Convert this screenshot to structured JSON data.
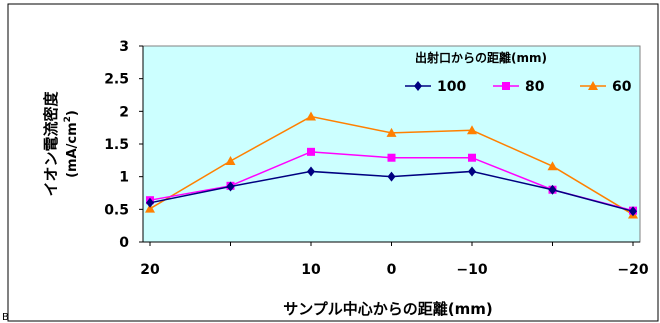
{
  "figure_label": "B",
  "chart_data": {
    "type": "line",
    "x": [
      20,
      15,
      10,
      0,
      -10,
      -15,
      -20
    ],
    "x_tick_labels": [
      "20",
      "",
      "10",
      "0",
      "−10",
      "",
      "−20"
    ],
    "ylim": [
      0,
      3
    ],
    "y_tick_labels": [
      "0",
      "0.5",
      "1",
      "1.5",
      "2",
      "2.5",
      "3"
    ],
    "xlabel": "サンプル中心からの距離(mm)",
    "ylabel_line1": "イオン電流密度",
    "ylabel_line2_pre": "(mA/cm",
    "ylabel_line2_sup": "2",
    "ylabel_line2_post": ")",
    "legend_title": "出射口からの距離(mm)",
    "legend_position": "top-right",
    "grid": false,
    "plot_background": "#ccffff",
    "series": [
      {
        "name": "100",
        "marker": "diamond",
        "color": "#000080",
        "values": [
          0.6,
          0.85,
          1.08,
          1.0,
          1.08,
          0.8,
          0.47
        ]
      },
      {
        "name": "80",
        "marker": "square",
        "color": "#ff00ff",
        "values": [
          0.64,
          0.86,
          1.38,
          1.29,
          1.29,
          0.8,
          0.48
        ]
      },
      {
        "name": "60",
        "marker": "triangle",
        "color": "#ff8000",
        "values": [
          0.51,
          1.24,
          1.92,
          1.67,
          1.71,
          1.16,
          0.42
        ]
      }
    ]
  }
}
